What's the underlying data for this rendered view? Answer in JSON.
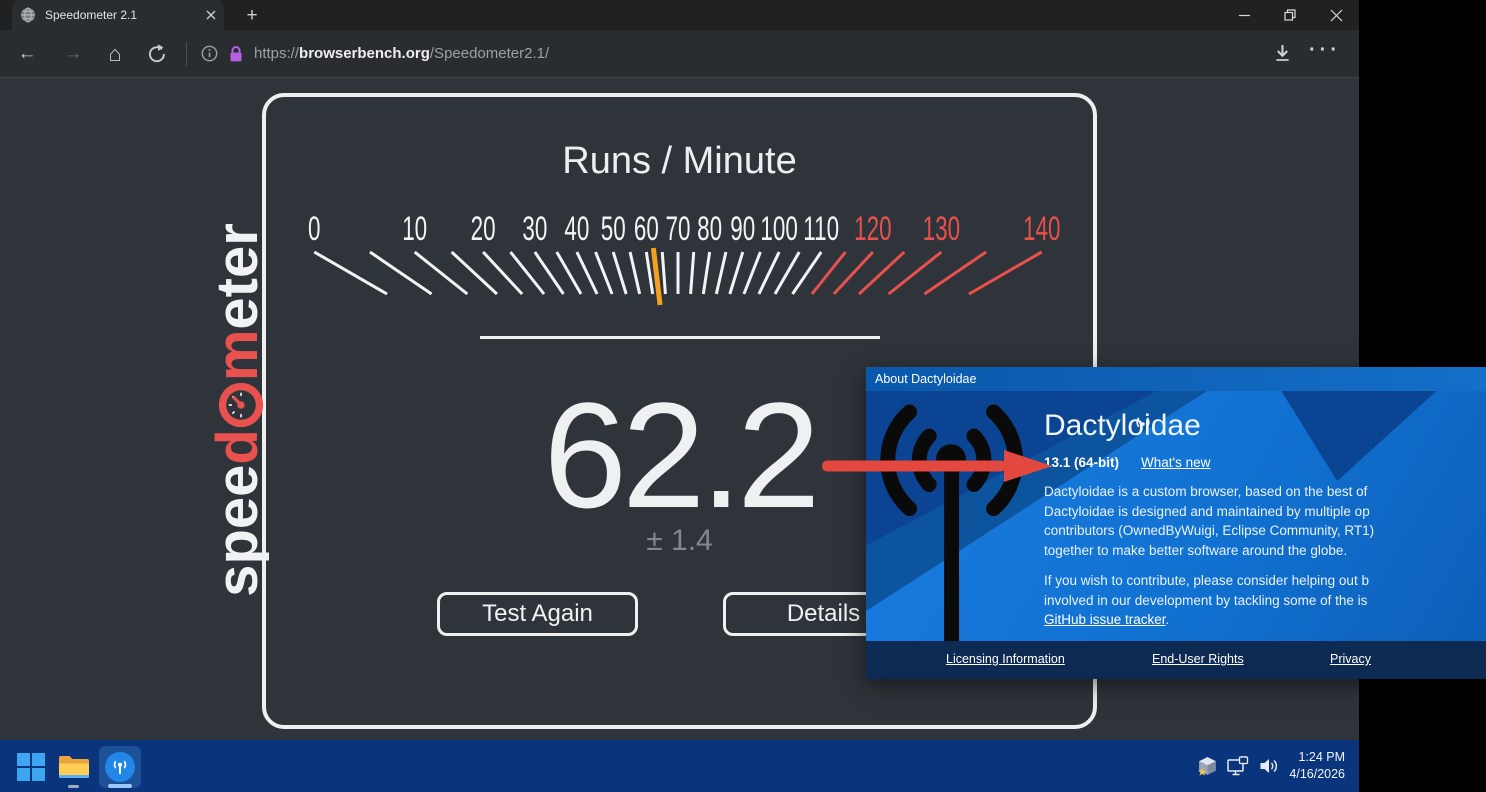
{
  "browser": {
    "tab_title": "Speedometer 2.1",
    "url": {
      "protocol": "https://",
      "host": "browserbench.org",
      "path": "/Speedometer2.1/"
    }
  },
  "chart_data": {
    "type": "gauge",
    "title": "Runs / Minute",
    "min": 0,
    "max": 140,
    "tick_step": 5,
    "label_step": 10,
    "angle_range_deg": 120,
    "value": 62.2,
    "uncertainty": 1.4,
    "redline_label_from": 120,
    "redline_tick_from": 115,
    "colors": {
      "tick": "#f1f3f4",
      "label": "#f1f3f4",
      "redline": "#e8514d",
      "needle": "#f6a021"
    }
  },
  "page": {
    "score": "62.2",
    "uncertainty": "± 1.4",
    "test_again_label": "Test Again",
    "details_label": "Details",
    "logo": {
      "seg1": "spee",
      "seg2": "d",
      "seg3": "m",
      "seg4": "eter"
    }
  },
  "dialog": {
    "title": "About Dactyloidae",
    "app_name": "Dactyloidae",
    "version": "13.1 (64-bit)",
    "whats_new_label": "What's new",
    "about_lines": [
      "Dactyloidae is a custom browser, based on the best of",
      "Dactyloidae is designed and maintained by multiple op",
      "contributors (OwnedByWuigi, Eclipse Community, RT1)",
      "together to make better software around the globe."
    ],
    "contribute_lines": [
      "If you wish to contribute, please consider helping out b",
      "involved in our development by tackling some of the is"
    ],
    "github_link_label": "GitHub issue tracker",
    "github_link_suffix": ".",
    "footer_links": [
      "Licensing Information",
      "End-User Rights",
      "Privacy"
    ]
  },
  "taskbar": {
    "time": "1:24 PM",
    "date": "4/16/2026"
  }
}
